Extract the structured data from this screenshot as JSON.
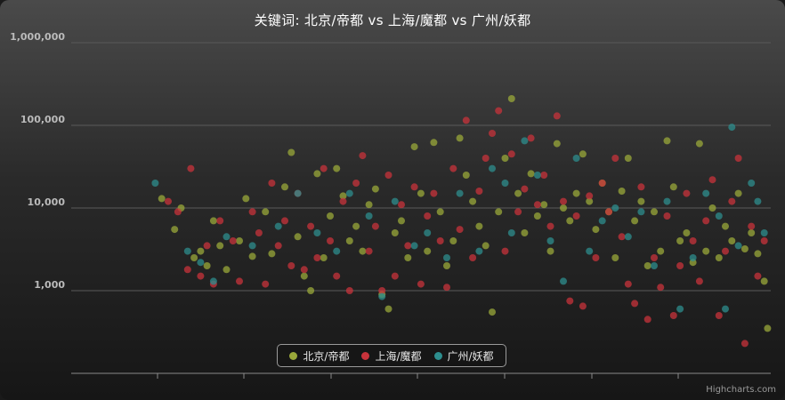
{
  "chart_data": {
    "type": "scatter",
    "title": "关键词: 北京/帝都 vs 上海/魔都 vs 广州/妖都",
    "y_scale": "log",
    "ylim": [
      100,
      1000000
    ],
    "y_ticks": [
      "1,000",
      "10,000",
      "100,000",
      "1,000,000"
    ],
    "y_tick_values": [
      1000,
      10000,
      100000,
      1000000
    ],
    "grid": "horizontal",
    "legend_position": "bottom-center",
    "series": [
      {
        "name": "北京/帝都",
        "color": "#9aa83a",
        "points": [
          [
            0.06,
            13000
          ],
          [
            0.08,
            5500
          ],
          [
            0.09,
            10000
          ],
          [
            0.11,
            2500
          ],
          [
            0.12,
            3000
          ],
          [
            0.13,
            2000
          ],
          [
            0.14,
            7000
          ],
          [
            0.15,
            3500
          ],
          [
            0.16,
            1800
          ],
          [
            0.18,
            4000
          ],
          [
            0.19,
            13000
          ],
          [
            0.2,
            2600
          ],
          [
            0.22,
            9000
          ],
          [
            0.23,
            2800
          ],
          [
            0.25,
            18000
          ],
          [
            0.26,
            47000
          ],
          [
            0.27,
            4500
          ],
          [
            0.28,
            1500
          ],
          [
            0.29,
            1000
          ],
          [
            0.3,
            26000
          ],
          [
            0.31,
            2500
          ],
          [
            0.32,
            8000
          ],
          [
            0.33,
            30000
          ],
          [
            0.34,
            14000
          ],
          [
            0.35,
            4000
          ],
          [
            0.36,
            6000
          ],
          [
            0.37,
            3000
          ],
          [
            0.38,
            11000
          ],
          [
            0.39,
            17000
          ],
          [
            0.4,
            900
          ],
          [
            0.41,
            600
          ],
          [
            0.42,
            5000
          ],
          [
            0.43,
            7000
          ],
          [
            0.44,
            2500
          ],
          [
            0.45,
            55000
          ],
          [
            0.46,
            15000
          ],
          [
            0.47,
            3000
          ],
          [
            0.48,
            62000
          ],
          [
            0.49,
            9000
          ],
          [
            0.5,
            2000
          ],
          [
            0.51,
            4000
          ],
          [
            0.52,
            70000
          ],
          [
            0.53,
            25000
          ],
          [
            0.54,
            12000
          ],
          [
            0.55,
            6000
          ],
          [
            0.56,
            3500
          ],
          [
            0.57,
            550
          ],
          [
            0.58,
            9000
          ],
          [
            0.59,
            40000
          ],
          [
            0.6,
            210000
          ],
          [
            0.61,
            15000
          ],
          [
            0.62,
            5000
          ],
          [
            0.63,
            26000
          ],
          [
            0.64,
            8000
          ],
          [
            0.65,
            11000
          ],
          [
            0.66,
            3000
          ],
          [
            0.67,
            60000
          ],
          [
            0.68,
            10000
          ],
          [
            0.69,
            7000
          ],
          [
            0.7,
            15000
          ],
          [
            0.71,
            45000
          ],
          [
            0.72,
            12000
          ],
          [
            0.73,
            5500
          ],
          [
            0.74,
            20000
          ],
          [
            0.75,
            9000
          ],
          [
            0.76,
            2500
          ],
          [
            0.77,
            16000
          ],
          [
            0.78,
            40000
          ],
          [
            0.79,
            7000
          ],
          [
            0.8,
            12000
          ],
          [
            0.81,
            2000
          ],
          [
            0.82,
            9000
          ],
          [
            0.83,
            3000
          ],
          [
            0.84,
            65000
          ],
          [
            0.85,
            18000
          ],
          [
            0.86,
            4000
          ],
          [
            0.87,
            5000
          ],
          [
            0.88,
            2200
          ],
          [
            0.89,
            60000
          ],
          [
            0.9,
            3000
          ],
          [
            0.91,
            10000
          ],
          [
            0.92,
            2500
          ],
          [
            0.93,
            6000
          ],
          [
            0.94,
            4000
          ],
          [
            0.95,
            15000
          ],
          [
            0.96,
            3200
          ],
          [
            0.97,
            5000
          ],
          [
            0.98,
            2800
          ],
          [
            0.99,
            1300
          ],
          [
            0.995,
            350
          ]
        ]
      },
      {
        "name": "上海/魔都",
        "color": "#c8333b",
        "points": [
          [
            0.07,
            12000
          ],
          [
            0.085,
            9000
          ],
          [
            0.1,
            1800
          ],
          [
            0.105,
            30000
          ],
          [
            0.12,
            1500
          ],
          [
            0.13,
            3500
          ],
          [
            0.14,
            1200
          ],
          [
            0.15,
            7000
          ],
          [
            0.17,
            4000
          ],
          [
            0.18,
            1300
          ],
          [
            0.2,
            9000
          ],
          [
            0.21,
            5000
          ],
          [
            0.22,
            1200
          ],
          [
            0.23,
            20000
          ],
          [
            0.24,
            3500
          ],
          [
            0.25,
            7000
          ],
          [
            0.26,
            2000
          ],
          [
            0.27,
            15000
          ],
          [
            0.28,
            1800
          ],
          [
            0.29,
            6000
          ],
          [
            0.3,
            2500
          ],
          [
            0.31,
            30000
          ],
          [
            0.32,
            4000
          ],
          [
            0.33,
            1500
          ],
          [
            0.34,
            12000
          ],
          [
            0.35,
            1000
          ],
          [
            0.36,
            20000
          ],
          [
            0.37,
            43000
          ],
          [
            0.38,
            3000
          ],
          [
            0.39,
            6000
          ],
          [
            0.4,
            1000
          ],
          [
            0.41,
            25000
          ],
          [
            0.42,
            1500
          ],
          [
            0.43,
            11000
          ],
          [
            0.44,
            3500
          ],
          [
            0.45,
            18000
          ],
          [
            0.46,
            1200
          ],
          [
            0.47,
            8000
          ],
          [
            0.48,
            15000
          ],
          [
            0.49,
            4000
          ],
          [
            0.5,
            1100
          ],
          [
            0.51,
            30000
          ],
          [
            0.52,
            5500
          ],
          [
            0.53,
            115000
          ],
          [
            0.54,
            2500
          ],
          [
            0.55,
            16000
          ],
          [
            0.56,
            40000
          ],
          [
            0.57,
            80000
          ],
          [
            0.58,
            150000
          ],
          [
            0.59,
            3000
          ],
          [
            0.6,
            45000
          ],
          [
            0.61,
            9000
          ],
          [
            0.62,
            17000
          ],
          [
            0.63,
            70000
          ],
          [
            0.64,
            11000
          ],
          [
            0.65,
            25000
          ],
          [
            0.66,
            6000
          ],
          [
            0.67,
            130000
          ],
          [
            0.68,
            12000
          ],
          [
            0.69,
            750
          ],
          [
            0.7,
            8000
          ],
          [
            0.71,
            650
          ],
          [
            0.72,
            14000
          ],
          [
            0.73,
            2500
          ],
          [
            0.74,
            20000
          ],
          [
            0.75,
            9000
          ],
          [
            0.76,
            40000
          ],
          [
            0.77,
            4500
          ],
          [
            0.78,
            1200
          ],
          [
            0.79,
            700
          ],
          [
            0.8,
            18000
          ],
          [
            0.81,
            450
          ],
          [
            0.82,
            2500
          ],
          [
            0.83,
            1100
          ],
          [
            0.84,
            8000
          ],
          [
            0.85,
            500
          ],
          [
            0.86,
            2000
          ],
          [
            0.87,
            15000
          ],
          [
            0.88,
            4000
          ],
          [
            0.89,
            1300
          ],
          [
            0.9,
            7000
          ],
          [
            0.91,
            22000
          ],
          [
            0.92,
            500
          ],
          [
            0.93,
            3000
          ],
          [
            0.94,
            12000
          ],
          [
            0.95,
            40000
          ],
          [
            0.96,
            230
          ],
          [
            0.97,
            6000
          ],
          [
            0.98,
            1500
          ],
          [
            0.99,
            4000
          ]
        ]
      },
      {
        "name": "广州/妖都",
        "color": "#2d8e8e",
        "points": [
          [
            0.05,
            20000
          ],
          [
            0.1,
            3000
          ],
          [
            0.12,
            2200
          ],
          [
            0.14,
            1300
          ],
          [
            0.16,
            4500
          ],
          [
            0.2,
            3500
          ],
          [
            0.24,
            6000
          ],
          [
            0.27,
            15000
          ],
          [
            0.3,
            5000
          ],
          [
            0.33,
            3000
          ],
          [
            0.35,
            15000
          ],
          [
            0.38,
            8000
          ],
          [
            0.4,
            850
          ],
          [
            0.42,
            12000
          ],
          [
            0.45,
            3500
          ],
          [
            0.47,
            5000
          ],
          [
            0.5,
            2500
          ],
          [
            0.52,
            15000
          ],
          [
            0.55,
            3000
          ],
          [
            0.57,
            30000
          ],
          [
            0.59,
            20000
          ],
          [
            0.6,
            5000
          ],
          [
            0.62,
            65000
          ],
          [
            0.64,
            25000
          ],
          [
            0.66,
            4000
          ],
          [
            0.68,
            1300
          ],
          [
            0.7,
            40000
          ],
          [
            0.72,
            3000
          ],
          [
            0.74,
            7000
          ],
          [
            0.76,
            10000
          ],
          [
            0.78,
            4500
          ],
          [
            0.8,
            9000
          ],
          [
            0.82,
            2000
          ],
          [
            0.84,
            12000
          ],
          [
            0.86,
            600
          ],
          [
            0.88,
            2500
          ],
          [
            0.9,
            15000
          ],
          [
            0.92,
            8000
          ],
          [
            0.93,
            600
          ],
          [
            0.94,
            95000
          ],
          [
            0.95,
            3500
          ],
          [
            0.97,
            20000
          ],
          [
            0.98,
            12000
          ],
          [
            0.99,
            5000
          ]
        ]
      }
    ]
  },
  "legend": {
    "items": [
      "北京/帝都",
      "上海/魔都",
      "广州/妖都"
    ]
  },
  "credits": "Highcharts.com"
}
